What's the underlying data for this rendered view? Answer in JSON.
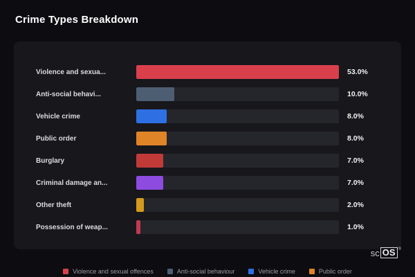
{
  "title": "Crime Types Breakdown",
  "chart_data": {
    "type": "bar",
    "orientation": "horizontal",
    "title": "Crime Types Breakdown",
    "xlabel": "",
    "ylabel": "",
    "xlim": [
      0,
      53
    ],
    "categories": [
      "Violence and sexua...",
      "Anti-social behavi...",
      "Vehicle crime",
      "Public order",
      "Burglary",
      "Criminal damage an...",
      "Other theft",
      "Possession of weap..."
    ],
    "values": [
      53.0,
      10.0,
      8.0,
      8.0,
      7.0,
      7.0,
      2.0,
      1.0
    ],
    "value_labels": [
      "53.0%",
      "10.0%",
      "8.0%",
      "8.0%",
      "7.0%",
      "7.0%",
      "2.0%",
      "1.0%"
    ],
    "bar_colors": [
      "#d9404c",
      "#4e5e72",
      "#2f6fe4",
      "#e08428",
      "#c13a38",
      "#8d4be0",
      "#d49a1d",
      "#c03a50"
    ],
    "track_color": "#25252c",
    "grid": false,
    "legend_position": "bottom"
  },
  "legend": [
    {
      "label": "Violence and sexual offences",
      "color": "#d9404c"
    },
    {
      "label": "Anti-social behaviour",
      "color": "#4e5e72"
    },
    {
      "label": "Vehicle crime",
      "color": "#2f6fe4"
    },
    {
      "label": "Public order",
      "color": "#e08428"
    }
  ],
  "branding": {
    "prefix": "sc",
    "suffix": "OS",
    "registered": "®"
  }
}
